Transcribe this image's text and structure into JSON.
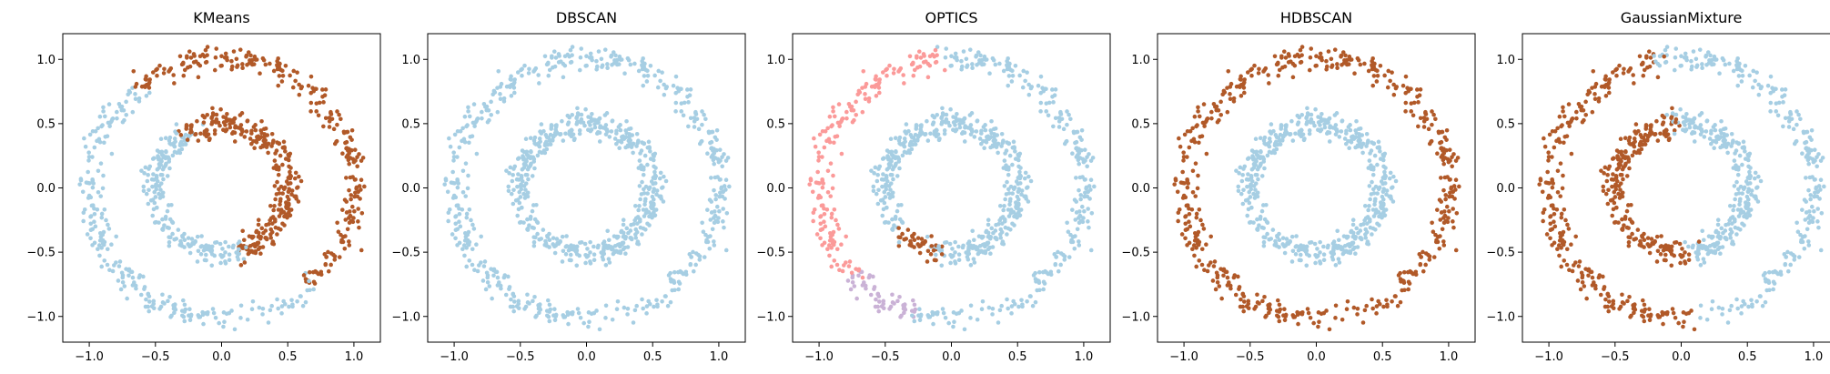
{
  "chart_data": [
    {
      "type": "scatter",
      "title": "KMeans",
      "xlim": [
        -1.2,
        1.2
      ],
      "ylim": [
        -1.2,
        1.2
      ],
      "xticks": [
        -1.0,
        -0.5,
        0.0,
        0.5,
        1.0
      ],
      "yticks": [
        -1.0,
        -0.5,
        0.0,
        0.5,
        1.0
      ],
      "tick_labels": [
        "−1.0",
        "−0.5",
        "0.0",
        "0.5",
        "1.0"
      ],
      "grid": false,
      "data": {
        "rings": [
          {
            "r": 1.0,
            "n": 500
          },
          {
            "r": 0.5,
            "n": 500
          }
        ],
        "noise": 0.05
      },
      "clusters": [
        {
          "color": "#a6cee3",
          "region": "outer ring, angles 130° to 312°; inner ring, angles 120° to 285°"
        },
        {
          "color": "#b15928",
          "region": "outer ring, angles 312° to 130°; inner ring, angles 285° to 120°"
        }
      ],
      "segments": [
        {
          "ring": "outer",
          "from": 130,
          "to": 312,
          "color": "#a6cee3"
        },
        {
          "ring": "outer",
          "from": 312,
          "to": 490,
          "color": "#b15928"
        },
        {
          "ring": "inner",
          "from": 120,
          "to": 285,
          "color": "#a6cee3"
        },
        {
          "ring": "inner",
          "from": 285,
          "to": 480,
          "color": "#b15928"
        }
      ]
    },
    {
      "type": "scatter",
      "title": "DBSCAN",
      "xlim": [
        -1.2,
        1.2
      ],
      "ylim": [
        -1.2,
        1.2
      ],
      "xticks": [
        -1.0,
        -0.5,
        0.0,
        0.5,
        1.0
      ],
      "yticks": [
        -1.0,
        -0.5,
        0.0,
        0.5,
        1.0
      ],
      "tick_labels": [
        "−1.0",
        "−0.5",
        "0.0",
        "0.5",
        "1.0"
      ],
      "grid": false,
      "data": {
        "rings": [
          {
            "r": 1.0,
            "n": 500
          },
          {
            "r": 0.5,
            "n": 500
          }
        ],
        "noise": 0.05
      },
      "clusters": [
        {
          "color": "#a6cee3",
          "region": "all points"
        }
      ],
      "segments": [
        {
          "ring": "outer",
          "from": 0,
          "to": 360,
          "color": "#a6cee3"
        },
        {
          "ring": "inner",
          "from": 0,
          "to": 360,
          "color": "#a6cee3"
        }
      ]
    },
    {
      "type": "scatter",
      "title": "OPTICS",
      "xlim": [
        -1.2,
        1.2
      ],
      "ylim": [
        -1.2,
        1.2
      ],
      "xticks": [
        -1.0,
        -0.5,
        0.0,
        0.5,
        1.0
      ],
      "yticks": [
        -1.0,
        -0.5,
        0.0,
        0.5,
        1.0
      ],
      "tick_labels": [
        "−1.0",
        "−0.5",
        "0.0",
        "0.5",
        "1.0"
      ],
      "grid": false,
      "data": {
        "rings": [
          {
            "r": 1.0,
            "n": 500
          },
          {
            "r": 0.5,
            "n": 500
          }
        ],
        "noise": 0.05
      },
      "clusters": [
        {
          "color": "#a6cee3",
          "region": "outer ring, angles 60° to 95° and 255° to 420°; inner ring except 220°–255°"
        },
        {
          "color": "#fb9a99",
          "region": "outer ring, angles 95° to 222°"
        },
        {
          "color": "#cab2d6",
          "region": "outer ring, angles 222° to 255°"
        },
        {
          "color": "#b15928",
          "region": "inner ring, angles 220° to 255°"
        }
      ],
      "segments": [
        {
          "ring": "outer",
          "from": 60,
          "to": 95,
          "color": "#a6cee3"
        },
        {
          "ring": "outer",
          "from": 95,
          "to": 222,
          "color": "#fb9a99"
        },
        {
          "ring": "outer",
          "from": 222,
          "to": 255,
          "color": "#cab2d6"
        },
        {
          "ring": "outer",
          "from": 255,
          "to": 420,
          "color": "#a6cee3"
        },
        {
          "ring": "inner",
          "from": 255,
          "to": 580,
          "color": "#a6cee3"
        },
        {
          "ring": "inner",
          "from": 220,
          "to": 255,
          "color": "#b15928"
        }
      ]
    },
    {
      "type": "scatter",
      "title": "HDBSCAN",
      "xlim": [
        -1.2,
        1.2
      ],
      "ylim": [
        -1.2,
        1.2
      ],
      "xticks": [
        -1.0,
        -0.5,
        0.0,
        0.5,
        1.0
      ],
      "yticks": [
        -1.0,
        -0.5,
        0.0,
        0.5,
        1.0
      ],
      "tick_labels": [
        "−1.0",
        "−0.5",
        "0.0",
        "0.5",
        "1.0"
      ],
      "grid": false,
      "data": {
        "rings": [
          {
            "r": 1.0,
            "n": 500
          },
          {
            "r": 0.5,
            "n": 500
          }
        ],
        "noise": 0.05
      },
      "clusters": [
        {
          "color": "#b15928",
          "region": "outer ring"
        },
        {
          "color": "#a6cee3",
          "region": "inner ring"
        }
      ],
      "segments": [
        {
          "ring": "outer",
          "from": 0,
          "to": 360,
          "color": "#b15928"
        },
        {
          "ring": "inner",
          "from": 0,
          "to": 360,
          "color": "#a6cee3"
        }
      ]
    },
    {
      "type": "scatter",
      "title": "GaussianMixture",
      "xlim": [
        -1.2,
        1.2
      ],
      "ylim": [
        -1.2,
        1.2
      ],
      "xticks": [
        -1.0,
        -0.5,
        0.0,
        0.5,
        1.0
      ],
      "yticks": [
        -1.0,
        -0.5,
        0.0,
        0.5,
        1.0
      ],
      "tick_labels": [
        "−1.0",
        "−0.5",
        "0.0",
        "0.5",
        "1.0"
      ],
      "grid": false,
      "data": {
        "rings": [
          {
            "r": 1.0,
            "n": 500
          },
          {
            "r": 0.5,
            "n": 500
          }
        ],
        "noise": 0.05
      },
      "clusters": [
        {
          "color": "#b15928",
          "region": "outer ring, angles 100° to 275°; inner ring, angles 95° to 275°"
        },
        {
          "color": "#a6cee3",
          "region": "outer ring, angles 275° to 100°; inner ring, angles 275° to 95°"
        }
      ],
      "segments": [
        {
          "ring": "outer",
          "from": 100,
          "to": 275,
          "color": "#b15928"
        },
        {
          "ring": "outer",
          "from": 275,
          "to": 460,
          "color": "#a6cee3"
        },
        {
          "ring": "inner",
          "from": 95,
          "to": 275,
          "color": "#b15928"
        },
        {
          "ring": "inner",
          "from": 275,
          "to": 455,
          "color": "#a6cee3"
        }
      ]
    }
  ]
}
